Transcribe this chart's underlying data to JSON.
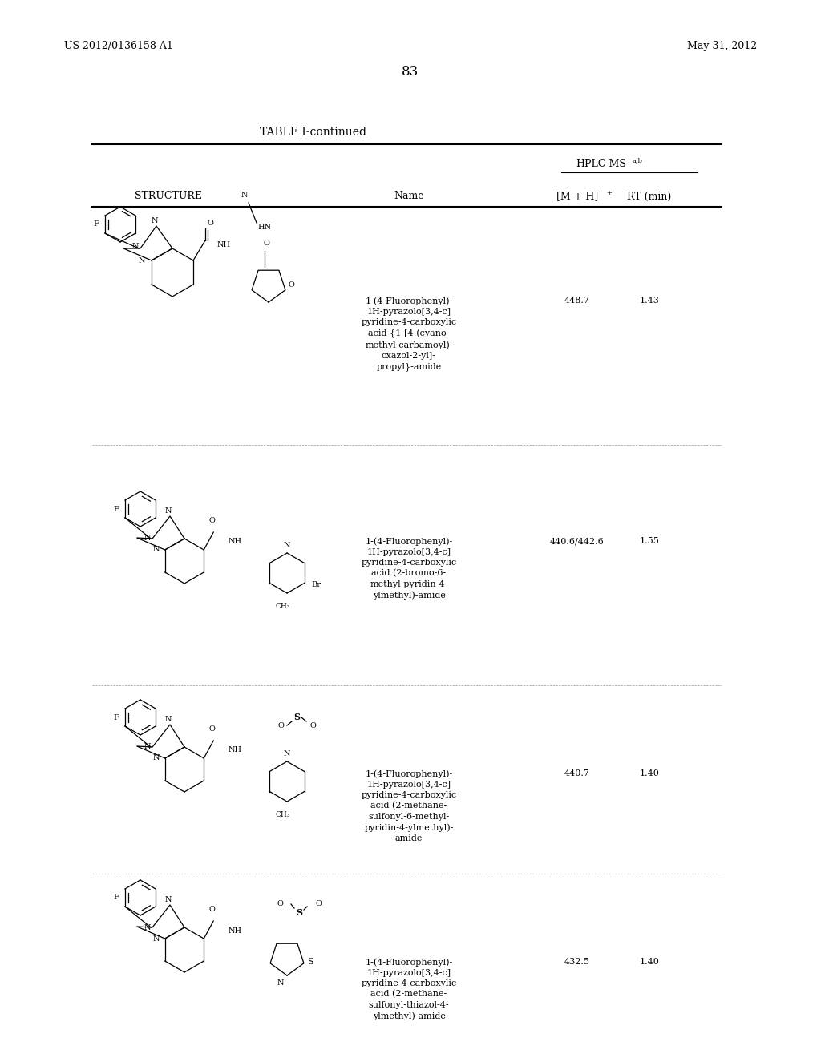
{
  "page_left": "US 2012/0136158 A1",
  "page_right": "May 31, 2012",
  "page_number": "83",
  "table_title": "TABLE I-continued",
  "hplc_header": "HPLC-MSᵃʰᵇ",
  "col_structure": "STRUCTURE",
  "col_name": "Name",
  "col_mh": "[M + H]⁺",
  "col_rt": "RT (min)",
  "rows": [
    {
      "mh": "448.7",
      "rt": "1.43",
      "name": "1-(4-Fluorophenyl)-\n1H-pyrazolo[3,4-c]\npyridine-4-carboxylic\nacid {1-[4-(cyano-\nmethyl-carbamoyl)-\noxazol-2-yl]-\npropyl}-amide"
    },
    {
      "mh": "440.6/442.6",
      "rt": "1.55",
      "name": "1-(4-Fluorophenyl)-\n1H-pyrazolo[3,4-c]\npyridine-4-carboxylic\nacid (2-bromo-6-\nmethyl-pyridin-4-\nylmethyl)-amide"
    },
    {
      "mh": "440.7",
      "rt": "1.40",
      "name": "1-(4-Fluorophenyl)-\n1H-pyrazolo[3,4-c]\npyridine-4-carboxylic\nacid (2-methane-\nsulfonyl-6-methyl-\npyridin-4-ylmethyl)-\namide"
    },
    {
      "mh": "432.5",
      "rt": "1.40",
      "name": "1-(4-Fluorophenyl)-\n1H-pyrazolo[3,4-c]\npyridine-4-carboxylic\nacid (2-methane-\nsulfonyl-thiazol-4-\nylmethyl)-amide"
    }
  ],
  "bg_color": "#ffffff",
  "text_color": "#000000",
  "line_color": "#000000",
  "font_size_header": 9,
  "font_size_body": 8,
  "font_size_page": 9,
  "font_size_title": 10,
  "font_size_number": 12
}
